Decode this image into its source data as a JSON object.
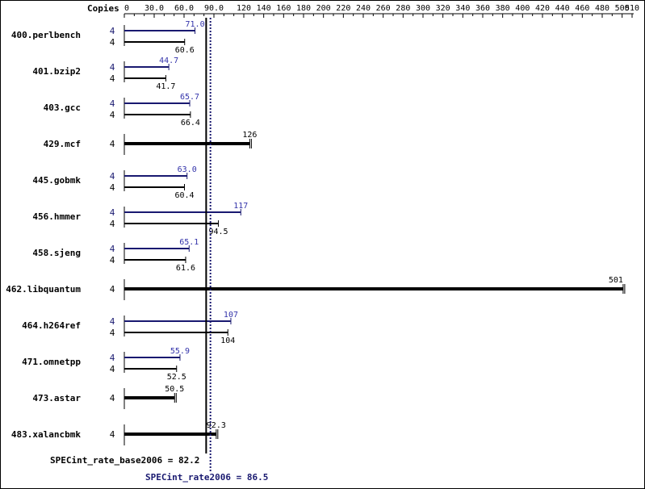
{
  "colors": {
    "base": "#000000",
    "peak": "#191970",
    "peak_text": "#3333aa",
    "frame": "#000000"
  },
  "chart_data": {
    "type": "bar",
    "orientation": "horizontal",
    "axis_title": "Copies",
    "xlim": [
      0,
      510
    ],
    "xticks": [
      0,
      30,
      60,
      90,
      120,
      140,
      160,
      180,
      200,
      220,
      240,
      260,
      280,
      300,
      320,
      340,
      360,
      380,
      400,
      420,
      440,
      460,
      480,
      500,
      510
    ],
    "xtick_labels": [
      "0",
      "30.0",
      "60.0",
      "90.0",
      "120",
      "140",
      "160",
      "180",
      "200",
      "220",
      "240",
      "260",
      "280",
      "300",
      "320",
      "340",
      "360",
      "380",
      "400",
      "420",
      "440",
      "460",
      "480",
      "500",
      "510"
    ],
    "grid": false,
    "series": [
      {
        "name": "peak",
        "color": "#191970"
      },
      {
        "name": "base",
        "color": "#000000"
      }
    ],
    "benchmarks": [
      {
        "name": "400.perlbench",
        "peak": 71.0,
        "peak_label": "71.0",
        "peak_copies": "4",
        "base": 60.6,
        "base_label": "60.6",
        "base_copies": "4"
      },
      {
        "name": "401.bzip2",
        "peak": 44.7,
        "peak_label": "44.7",
        "peak_copies": "4",
        "base": 41.7,
        "base_label": "41.7",
        "base_copies": "4"
      },
      {
        "name": "403.gcc",
        "peak": 65.7,
        "peak_label": "65.7",
        "peak_copies": "4",
        "base": 66.4,
        "base_label": "66.4",
        "base_copies": "4"
      },
      {
        "name": "429.mcf",
        "base": 126,
        "base_label": "126",
        "base_copies": "4"
      },
      {
        "name": "445.gobmk",
        "peak": 63.0,
        "peak_label": "63.0",
        "peak_copies": "4",
        "base": 60.4,
        "base_label": "60.4",
        "base_copies": "4"
      },
      {
        "name": "456.hmmer",
        "peak": 117,
        "peak_label": "117",
        "peak_copies": "4",
        "base": 94.5,
        "base_label": "94.5",
        "base_copies": "4"
      },
      {
        "name": "458.sjeng",
        "peak": 65.1,
        "peak_label": "65.1",
        "peak_copies": "4",
        "base": 61.6,
        "base_label": "61.6",
        "base_copies": "4"
      },
      {
        "name": "462.libquantum",
        "base": 501,
        "base_label": "501",
        "base_copies": "4"
      },
      {
        "name": "464.h264ref",
        "peak": 107,
        "peak_label": "107",
        "peak_copies": "4",
        "base": 104,
        "base_label": "104",
        "base_copies": "4"
      },
      {
        "name": "471.omnetpp",
        "peak": 55.9,
        "peak_label": "55.9",
        "peak_copies": "4",
        "base": 52.5,
        "base_label": "52.5",
        "base_copies": "4"
      },
      {
        "name": "473.astar",
        "base": 50.5,
        "base_label": "50.5",
        "base_copies": "4"
      },
      {
        "name": "483.xalancbmk",
        "base": 92.3,
        "base_label": "92.3",
        "base_copies": "4"
      }
    ],
    "summary": {
      "base_label": "SPECint_rate_base2006 = 82.2",
      "base_value": 82.2,
      "peak_label": "SPECint_rate2006 = 86.5",
      "peak_value": 86.5
    }
  }
}
